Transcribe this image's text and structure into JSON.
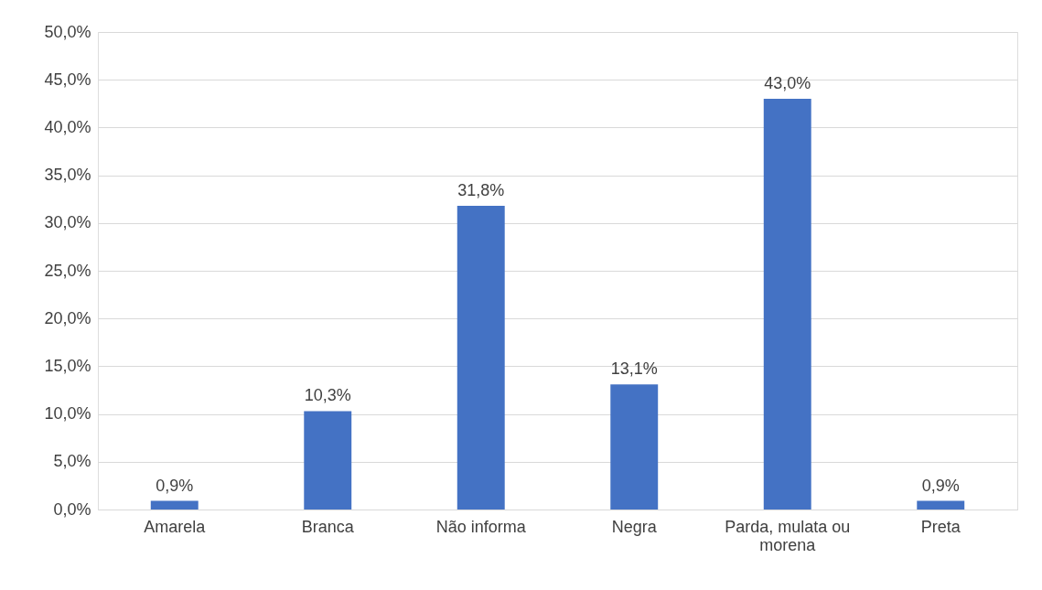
{
  "chart_data": {
    "type": "bar",
    "categories": [
      "Amarela",
      "Branca",
      "Não informa",
      "Negra",
      "Parda, mulata ou morena",
      "Preta"
    ],
    "values": [
      0.9,
      10.3,
      31.8,
      13.1,
      43.0,
      0.9
    ],
    "value_labels": [
      "0,9%",
      "10,3%",
      "31,8%",
      "13,1%",
      "43,0%",
      "0,9%"
    ],
    "color": "#4472c4",
    "ylim": [
      0,
      50
    ],
    "yticks": [
      {
        "value": 0,
        "label": "0,0%"
      },
      {
        "value": 5,
        "label": "5,0%"
      },
      {
        "value": 10,
        "label": "10,0%"
      },
      {
        "value": 15,
        "label": "15,0%"
      },
      {
        "value": 20,
        "label": "20,0%"
      },
      {
        "value": 25,
        "label": "25,0%"
      },
      {
        "value": 30,
        "label": "30,0%"
      },
      {
        "value": 35,
        "label": "35,0%"
      },
      {
        "value": 40,
        "label": "40,0%"
      },
      {
        "value": 45,
        "label": "45,0%"
      },
      {
        "value": 50,
        "label": "50,0%"
      }
    ],
    "grid": "y"
  }
}
